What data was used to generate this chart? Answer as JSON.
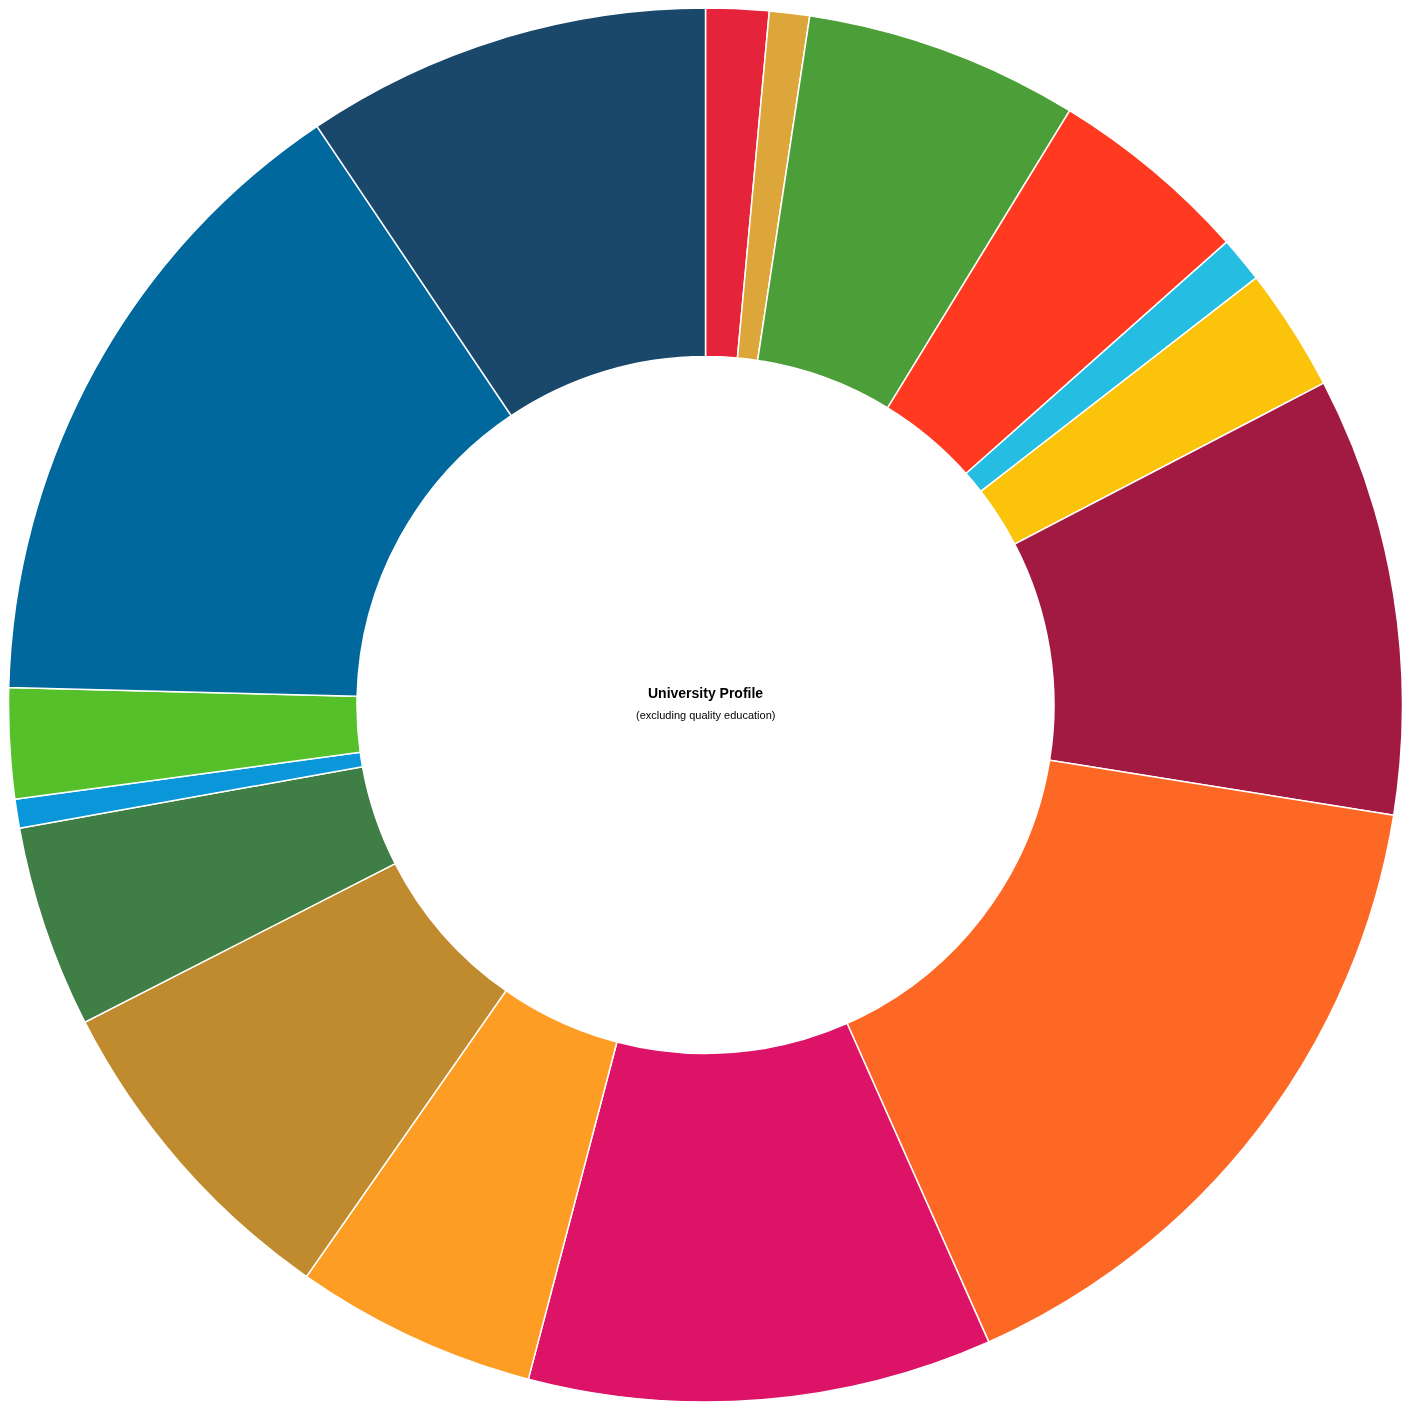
{
  "chart_data": {
    "type": "donut",
    "title": "University Profile",
    "subtitle": "(excluding quality education)",
    "categories": [
      null,
      null,
      null,
      null,
      null,
      null,
      null,
      null,
      null,
      null,
      null,
      null,
      null,
      null,
      null,
      null
    ],
    "values": [
      1.46,
      0.93,
      6.36,
      4.69,
      1.06,
      2.86,
      10.17,
      15.81,
      10.75,
      5.61,
      7.78,
      4.69,
      0.67,
      2.56,
      15.19,
      9.41
    ],
    "colors": [
      "#e5243b",
      "#dda63a",
      "#4c9f38",
      "#ff3a21",
      "#26bde2",
      "#fcc30b",
      "#a21942",
      "#fd6925",
      "#dd1367",
      "#fd9d24",
      "#bf8b2e",
      "#3f7e44",
      "#0a97d9",
      "#56c02b",
      "#00689d",
      "#19486a"
    ],
    "legend": false
  }
}
